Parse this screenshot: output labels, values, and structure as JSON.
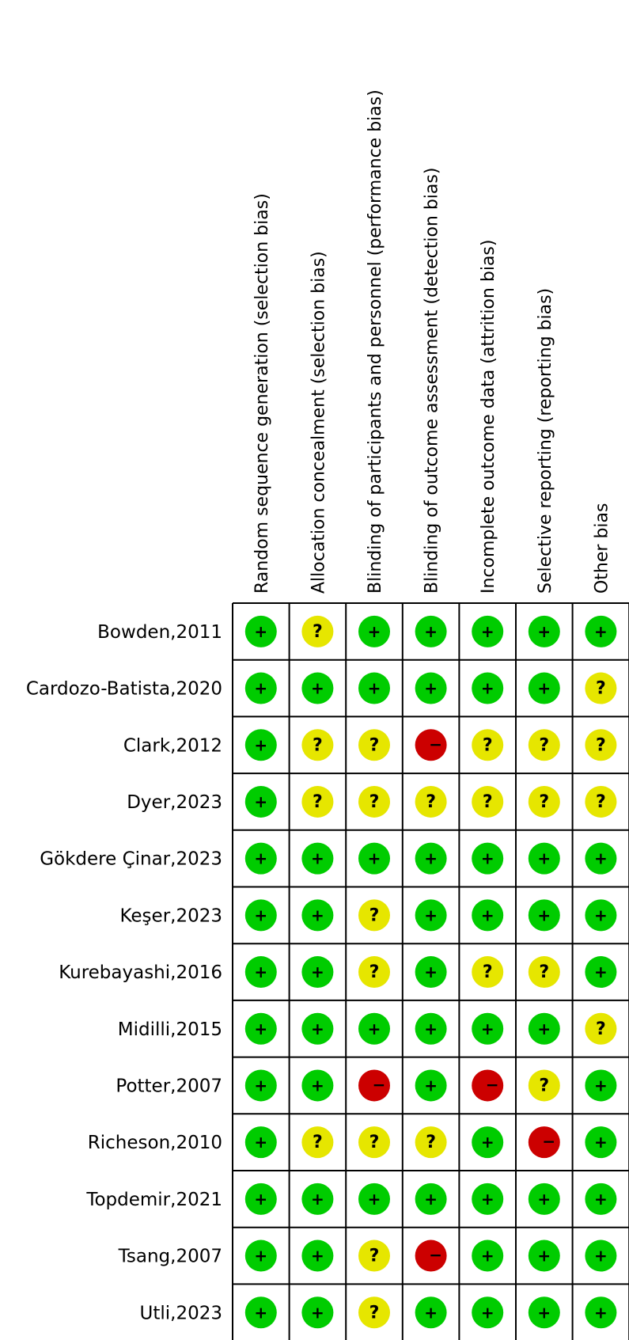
{
  "chart_data": {
    "type": "table",
    "domains": [
      "Random sequence generation (selection bias)",
      "Allocation concealment (selection bias)",
      "Blinding of participants and personnel (performance bias)",
      "Blinding of outcome assessment (detection bias)",
      "Incomplete outcome data (attrition bias)",
      "Selective reporting (reporting bias)",
      "Other bias"
    ],
    "studies": [
      "Bowden,2011",
      "Cardozo-Batista,2020",
      "Clark,2012",
      "Dyer,2023",
      "Gökdere Çinar,2023",
      "Keşer,2023",
      "Kurebayashi,2016",
      "Midilli,2015",
      "Potter,2007",
      "Richeson,2010",
      "Topdemir,2021",
      "Tsang,2007",
      "Utli,2023"
    ],
    "judgements": [
      [
        "low",
        "unclear",
        "low",
        "low",
        "low",
        "low",
        "low"
      ],
      [
        "low",
        "low",
        "low",
        "low",
        "low",
        "low",
        "unclear"
      ],
      [
        "low",
        "unclear",
        "unclear",
        "high",
        "unclear",
        "unclear",
        "unclear"
      ],
      [
        "low",
        "unclear",
        "unclear",
        "unclear",
        "unclear",
        "unclear",
        "unclear"
      ],
      [
        "low",
        "low",
        "low",
        "low",
        "low",
        "low",
        "low"
      ],
      [
        "low",
        "low",
        "unclear",
        "low",
        "low",
        "low",
        "low"
      ],
      [
        "low",
        "low",
        "unclear",
        "low",
        "unclear",
        "unclear",
        "low"
      ],
      [
        "low",
        "low",
        "low",
        "low",
        "low",
        "low",
        "unclear"
      ],
      [
        "low",
        "low",
        "high",
        "low",
        "high",
        "unclear",
        "low"
      ],
      [
        "low",
        "unclear",
        "unclear",
        "unclear",
        "low",
        "high",
        "low"
      ],
      [
        "low",
        "low",
        "low",
        "low",
        "low",
        "low",
        "low"
      ],
      [
        "low",
        "low",
        "unclear",
        "high",
        "low",
        "low",
        "low"
      ],
      [
        "low",
        "low",
        "unclear",
        "low",
        "low",
        "low",
        "low"
      ]
    ],
    "symbols": {
      "low": "+",
      "unclear": "?",
      "high": "−"
    },
    "colors": {
      "low": "#00cc00",
      "unclear": "#e6e600",
      "high": "#cc0000",
      "grid": "#000000"
    }
  }
}
